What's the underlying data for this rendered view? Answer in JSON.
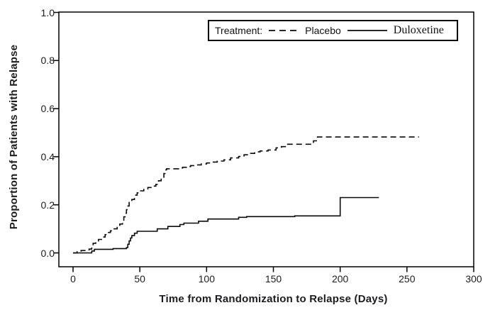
{
  "figure": {
    "background": "#ffffff",
    "line_color": "#0a0a0a",
    "text_color": "#1d1d1f"
  },
  "legend": {
    "title": "Treatment:",
    "entries": [
      {
        "label": "Placebo",
        "style": "dashed"
      },
      {
        "label": "Duloxetine",
        "style": "solid"
      }
    ]
  },
  "chart_data": {
    "type": "line",
    "subtype": "kaplan-meier-step",
    "title": "",
    "xlabel": "Time from Randomization to Relapse (Days)",
    "ylabel": "Proportion of Patients with Relapse",
    "xlim": [
      0,
      300
    ],
    "ylim": [
      0.0,
      1.0
    ],
    "grid": false,
    "legend_position": "top-right-inside",
    "x_ticks": [
      0,
      50,
      100,
      150,
      200,
      250,
      300
    ],
    "y_ticks": [
      {
        "value": 0.0,
        "label": "0.0"
      },
      {
        "value": 0.2,
        "label": "0.2"
      },
      {
        "value": 0.4,
        "label": "0.4"
      },
      {
        "value": 0.6,
        "label": "0.6"
      },
      {
        "value": 0.8,
        "label": "0.8"
      },
      {
        "value": 1.0,
        "label": "1.0"
      }
    ],
    "series": [
      {
        "name": "Placebo",
        "style": "dashed",
        "end_x": 259,
        "points": [
          [
            0,
            0.0
          ],
          [
            3,
            0.005
          ],
          [
            6,
            0.01
          ],
          [
            12,
            0.016
          ],
          [
            14,
            0.026
          ],
          [
            15,
            0.04
          ],
          [
            17,
            0.05
          ],
          [
            19,
            0.056
          ],
          [
            22,
            0.066
          ],
          [
            24,
            0.076
          ],
          [
            26,
            0.085
          ],
          [
            28,
            0.092
          ],
          [
            30,
            0.1
          ],
          [
            33,
            0.11
          ],
          [
            35,
            0.12
          ],
          [
            37,
            0.133
          ],
          [
            38,
            0.15
          ],
          [
            39,
            0.165
          ],
          [
            40,
            0.18
          ],
          [
            41,
            0.195
          ],
          [
            42,
            0.21
          ],
          [
            44,
            0.222
          ],
          [
            46,
            0.24
          ],
          [
            48,
            0.25
          ],
          [
            50,
            0.258
          ],
          [
            53,
            0.266
          ],
          [
            56,
            0.272
          ],
          [
            59,
            0.278
          ],
          [
            62,
            0.285
          ],
          [
            64,
            0.3
          ],
          [
            66,
            0.315
          ],
          [
            68,
            0.33
          ],
          [
            69,
            0.345
          ],
          [
            70,
            0.35
          ],
          [
            79,
            0.353
          ],
          [
            82,
            0.356
          ],
          [
            85,
            0.359
          ],
          [
            88,
            0.363
          ],
          [
            92,
            0.366
          ],
          [
            96,
            0.37
          ],
          [
            100,
            0.374
          ],
          [
            104,
            0.378
          ],
          [
            108,
            0.382
          ],
          [
            113,
            0.387
          ],
          [
            118,
            0.395
          ],
          [
            124,
            0.401
          ],
          [
            128,
            0.408
          ],
          [
            132,
            0.414
          ],
          [
            136,
            0.42
          ],
          [
            140,
            0.424
          ],
          [
            146,
            0.428
          ],
          [
            152,
            0.437
          ],
          [
            156,
            0.442
          ],
          [
            160,
            0.452
          ],
          [
            180,
            0.466
          ],
          [
            183,
            0.482
          ]
        ]
      },
      {
        "name": "Duloxetine",
        "style": "solid",
        "end_x": 229,
        "points": [
          [
            0,
            0.0
          ],
          [
            14,
            0.008
          ],
          [
            16,
            0.015
          ],
          [
            30,
            0.018
          ],
          [
            40,
            0.022
          ],
          [
            41,
            0.036
          ],
          [
            42,
            0.05
          ],
          [
            43,
            0.062
          ],
          [
            44,
            0.072
          ],
          [
            46,
            0.082
          ],
          [
            48,
            0.09
          ],
          [
            63,
            0.1
          ],
          [
            71,
            0.11
          ],
          [
            80,
            0.118
          ],
          [
            83,
            0.124
          ],
          [
            94,
            0.132
          ],
          [
            101,
            0.141
          ],
          [
            124,
            0.148
          ],
          [
            130,
            0.151
          ],
          [
            166,
            0.154
          ],
          [
            200,
            0.23
          ]
        ]
      }
    ]
  }
}
